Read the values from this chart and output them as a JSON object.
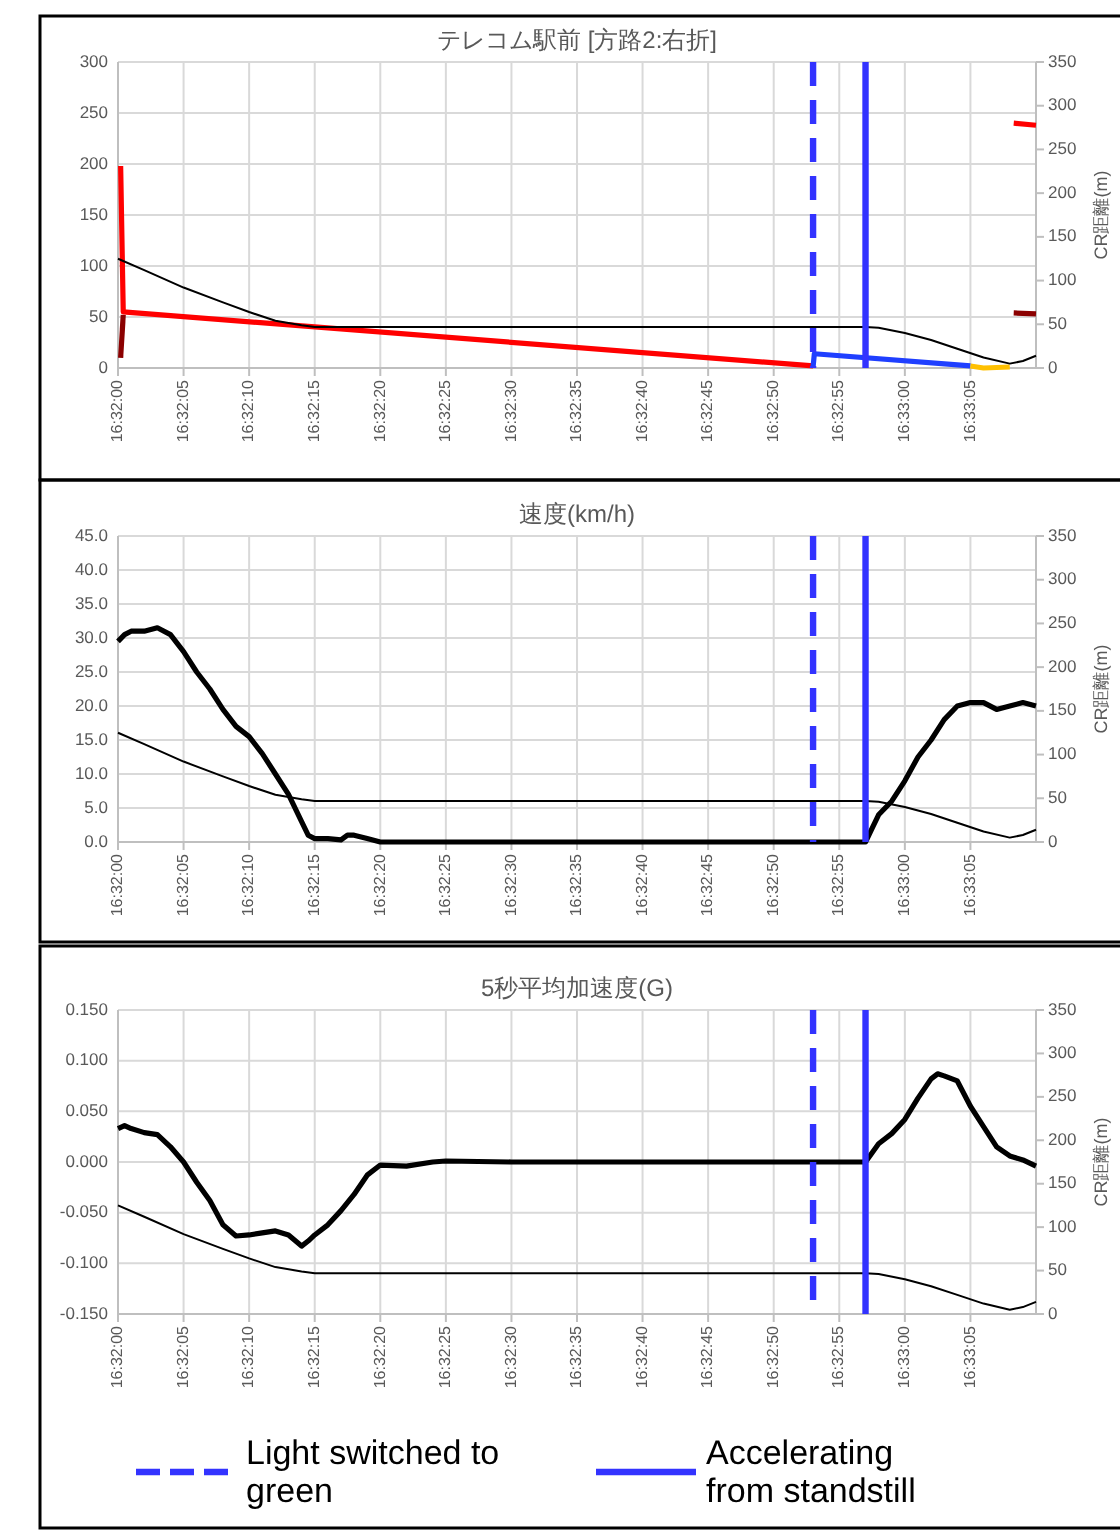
{
  "chart_data": [
    {
      "type": "line",
      "title": "テレコム駅前 [方路2:右折]",
      "y2label": "CR距離(m)",
      "grid": true,
      "xlim": [
        16.533333,
        16.552778
      ],
      "xticks": [
        {
          "value": 16.533333,
          "label": "16:32:00"
        },
        {
          "value": 16.534722,
          "label": "16:32:05"
        },
        {
          "value": 16.536111,
          "label": "16:32:10"
        },
        {
          "value": 16.5375,
          "label": "16:32:15"
        },
        {
          "value": 16.538889,
          "label": "16:32:20"
        },
        {
          "value": 16.540278,
          "label": "16:32:25"
        },
        {
          "value": 16.541667,
          "label": "16:32:30"
        },
        {
          "value": 16.543056,
          "label": "16:32:35"
        },
        {
          "value": 16.544444,
          "label": "16:32:40"
        },
        {
          "value": 16.545833,
          "label": "16:32:45"
        },
        {
          "value": 16.547222,
          "label": "16:32:50"
        },
        {
          "value": 16.548611,
          "label": "16:32:55"
        },
        {
          "value": 16.55,
          "label": "16:33:00"
        },
        {
          "value": 16.551389,
          "label": "16:33:05"
        }
      ],
      "ylim": [
        0,
        300
      ],
      "yticks": [
        0,
        50,
        100,
        150,
        200,
        250,
        300
      ],
      "y2lim": [
        0,
        350
      ],
      "y2ticks": [
        0,
        50,
        100,
        150,
        200,
        250,
        300,
        350
      ],
      "series": [
        {
          "color": "#ff0000",
          "x": [
            16.533389,
            16.533444,
            16.548056
          ],
          "values": [
            198,
            55,
            2
          ]
        },
        {
          "color": "#8b0000",
          "x": [
            16.533389,
            16.533444
          ],
          "values": [
            10,
            52
          ]
        },
        {
          "color": "#1f3fff",
          "x": [
            16.548056,
            16.548083,
            16.551389
          ],
          "values": [
            1,
            14,
            2
          ]
        },
        {
          "color": "#ffc000",
          "x": [
            16.551389,
            16.551667,
            16.552222
          ],
          "values": [
            2,
            0,
            1
          ]
        },
        {
          "color": "#ff0000",
          "x": [
            16.552306,
            16.552778
          ],
          "values": [
            240,
            238
          ]
        },
        {
          "color": "#8b0000",
          "x": [
            16.552306,
            16.552778
          ],
          "values": [
            54,
            53
          ]
        },
        {
          "color": "#000000",
          "axis": "y2",
          "x": [
            16.533333,
            16.533889,
            16.534722,
            16.535556,
            16.536111,
            16.536667,
            16.537222,
            16.5375,
            16.549167,
            16.549444,
            16.55,
            16.550556,
            16.551111,
            16.551667,
            16.552222,
            16.5525,
            16.552778
          ],
          "values": [
            125,
            112,
            92,
            75,
            64,
            54,
            49,
            47,
            47,
            46,
            40,
            32,
            22,
            12,
            5,
            8,
            14
          ]
        }
      ],
      "ref_lines": [
        {
          "axis": "x",
          "value": 16.548056,
          "color": "#3333ff",
          "line_style": "dashed"
        },
        {
          "axis": "x",
          "value": 16.549167,
          "color": "#3333ff",
          "line_style": "solid"
        }
      ]
    },
    {
      "type": "line",
      "title": "速度(km/h)",
      "y2label": "CR距離(m)",
      "grid": true,
      "xlim": [
        16.533333,
        16.552778
      ],
      "xticks": [
        {
          "value": 16.533333,
          "label": "16:32:00"
        },
        {
          "value": 16.534722,
          "label": "16:32:05"
        },
        {
          "value": 16.536111,
          "label": "16:32:10"
        },
        {
          "value": 16.5375,
          "label": "16:32:15"
        },
        {
          "value": 16.538889,
          "label": "16:32:20"
        },
        {
          "value": 16.540278,
          "label": "16:32:25"
        },
        {
          "value": 16.541667,
          "label": "16:32:30"
        },
        {
          "value": 16.543056,
          "label": "16:32:35"
        },
        {
          "value": 16.544444,
          "label": "16:32:40"
        },
        {
          "value": 16.545833,
          "label": "16:32:45"
        },
        {
          "value": 16.547222,
          "label": "16:32:50"
        },
        {
          "value": 16.548611,
          "label": "16:32:55"
        },
        {
          "value": 16.55,
          "label": "16:33:00"
        },
        {
          "value": 16.551389,
          "label": "16:33:05"
        }
      ],
      "ylim": [
        0,
        45
      ],
      "yticks": [
        {
          "value": 0,
          "label": "0.0"
        },
        {
          "value": 5,
          "label": "5.0"
        },
        {
          "value": 10,
          "label": "10.0"
        },
        {
          "value": 15,
          "label": "15.0"
        },
        {
          "value": 20,
          "label": "20.0"
        },
        {
          "value": 25,
          "label": "25.0"
        },
        {
          "value": 30,
          "label": "30.0"
        },
        {
          "value": 35,
          "label": "35.0"
        },
        {
          "value": 40,
          "label": "40.0"
        },
        {
          "value": 45,
          "label": "45.0"
        }
      ],
      "y2lim": [
        0,
        350
      ],
      "y2ticks": [
        0,
        50,
        100,
        150,
        200,
        250,
        300,
        350
      ],
      "series": [
        {
          "color": "#000000",
          "x": [
            16.533333,
            16.533472,
            16.533611,
            16.533889,
            16.534167,
            16.534444,
            16.534722,
            16.535,
            16.535278,
            16.535556,
            16.535833,
            16.536111,
            16.536389,
            16.536667,
            16.536944,
            16.537222,
            16.537361,
            16.5375,
            16.537778,
            16.538056,
            16.538194,
            16.538333,
            16.538611,
            16.538889,
            16.541667,
            16.544444,
            16.547222,
            16.549167,
            16.549306,
            16.549444,
            16.549722,
            16.55,
            16.550278,
            16.550556,
            16.550833,
            16.551111,
            16.551389,
            16.551667,
            16.551944,
            16.552222,
            16.5525,
            16.552778
          ],
          "values": [
            29.5,
            30.5,
            31,
            31,
            31.5,
            30.5,
            28,
            25,
            22.5,
            19.5,
            17,
            15.5,
            13,
            10,
            7,
            3,
            1,
            0.5,
            0.5,
            0.3,
            1,
            1,
            0.5,
            0,
            0,
            0,
            0,
            0,
            2,
            4,
            6,
            9,
            12.5,
            15,
            18,
            20,
            20.5,
            20.5,
            19.5,
            20,
            20.5,
            20
          ]
        },
        {
          "color": "#000000",
          "axis": "y2",
          "x": [
            16.533333,
            16.533889,
            16.534722,
            16.535556,
            16.536111,
            16.536667,
            16.537222,
            16.5375,
            16.549167,
            16.549444,
            16.55,
            16.550556,
            16.551111,
            16.551667,
            16.552222,
            16.5525,
            16.552778
          ],
          "values": [
            125,
            112,
            92,
            75,
            64,
            54,
            49,
            47,
            47,
            46,
            40,
            32,
            22,
            12,
            5,
            8,
            14
          ]
        }
      ],
      "ref_lines": [
        {
          "axis": "x",
          "value": 16.548056,
          "color": "#3333ff",
          "line_style": "dashed"
        },
        {
          "axis": "x",
          "value": 16.549167,
          "color": "#3333ff",
          "line_style": "solid"
        }
      ]
    },
    {
      "type": "line",
      "title": "5秒平均加速度(G)",
      "y2label": "CR距離(m)",
      "grid": true,
      "legend": "bottom",
      "xlim": [
        16.533333,
        16.552778
      ],
      "xticks": [
        {
          "value": 16.533333,
          "label": "16:32:00"
        },
        {
          "value": 16.534722,
          "label": "16:32:05"
        },
        {
          "value": 16.536111,
          "label": "16:32:10"
        },
        {
          "value": 16.5375,
          "label": "16:32:15"
        },
        {
          "value": 16.538889,
          "label": "16:32:20"
        },
        {
          "value": 16.540278,
          "label": "16:32:25"
        },
        {
          "value": 16.541667,
          "label": "16:32:30"
        },
        {
          "value": 16.543056,
          "label": "16:32:35"
        },
        {
          "value": 16.544444,
          "label": "16:32:40"
        },
        {
          "value": 16.545833,
          "label": "16:32:45"
        },
        {
          "value": 16.547222,
          "label": "16:32:50"
        },
        {
          "value": 16.548611,
          "label": "16:32:55"
        },
        {
          "value": 16.55,
          "label": "16:33:00"
        },
        {
          "value": 16.551389,
          "label": "16:33:05"
        }
      ],
      "ylim": [
        -0.15,
        0.15
      ],
      "yticks": [
        {
          "value": -0.15,
          "label": "-0.150"
        },
        {
          "value": -0.1,
          "label": "-0.100"
        },
        {
          "value": -0.05,
          "label": "-0.050"
        },
        {
          "value": 0,
          "label": "0.000"
        },
        {
          "value": 0.05,
          "label": "0.050"
        },
        {
          "value": 0.1,
          "label": "0.100"
        },
        {
          "value": 0.15,
          "label": "0.150"
        }
      ],
      "y2lim": [
        0,
        350
      ],
      "y2ticks": [
        0,
        50,
        100,
        150,
        200,
        250,
        300,
        350
      ],
      "series": [
        {
          "color": "#000000",
          "x": [
            16.533333,
            16.533472,
            16.533611,
            16.533889,
            16.534167,
            16.534444,
            16.534722,
            16.535,
            16.535278,
            16.535556,
            16.535833,
            16.536111,
            16.536389,
            16.536667,
            16.536944,
            16.537222,
            16.537361,
            16.5375,
            16.537778,
            16.538056,
            16.538333,
            16.538611,
            16.538889,
            16.539444,
            16.54,
            16.540278,
            16.541667,
            16.544444,
            16.547222,
            16.549167,
            16.549444,
            16.549722,
            16.55,
            16.550278,
            16.550556,
            16.550694,
            16.550833,
            16.551111,
            16.551389,
            16.551667,
            16.551944,
            16.552222,
            16.5525,
            16.552778
          ],
          "values": [
            0.033,
            0.036,
            0.033,
            0.029,
            0.027,
            0.015,
            0.0,
            -0.02,
            -0.038,
            -0.062,
            -0.073,
            -0.072,
            -0.07,
            -0.068,
            -0.072,
            -0.083,
            -0.078,
            -0.072,
            -0.062,
            -0.048,
            -0.032,
            -0.013,
            -0.003,
            -0.004,
            0.0,
            0.001,
            0.0,
            0.0,
            0.0,
            0.0,
            0.018,
            0.028,
            0.042,
            0.063,
            0.082,
            0.087,
            0.085,
            0.08,
            0.055,
            0.035,
            0.015,
            0.006,
            0.002,
            -0.004
          ]
        },
        {
          "color": "#000000",
          "axis": "y2",
          "x": [
            16.533333,
            16.533889,
            16.534722,
            16.535556,
            16.536111,
            16.536667,
            16.537222,
            16.5375,
            16.549167,
            16.549444,
            16.55,
            16.550556,
            16.551111,
            16.551667,
            16.552222,
            16.5525,
            16.552778
          ],
          "values": [
            125,
            112,
            92,
            75,
            64,
            54,
            49,
            47,
            47,
            46,
            40,
            32,
            22,
            12,
            5,
            8,
            14
          ]
        }
      ],
      "ref_lines": [
        {
          "axis": "x",
          "value": 16.548056,
          "color": "#3333ff",
          "line_style": "dashed",
          "label": "Light switched to green"
        },
        {
          "axis": "x",
          "value": 16.549167,
          "color": "#3333ff",
          "line_style": "solid",
          "label": "Accelerating from standstill"
        }
      ]
    }
  ]
}
